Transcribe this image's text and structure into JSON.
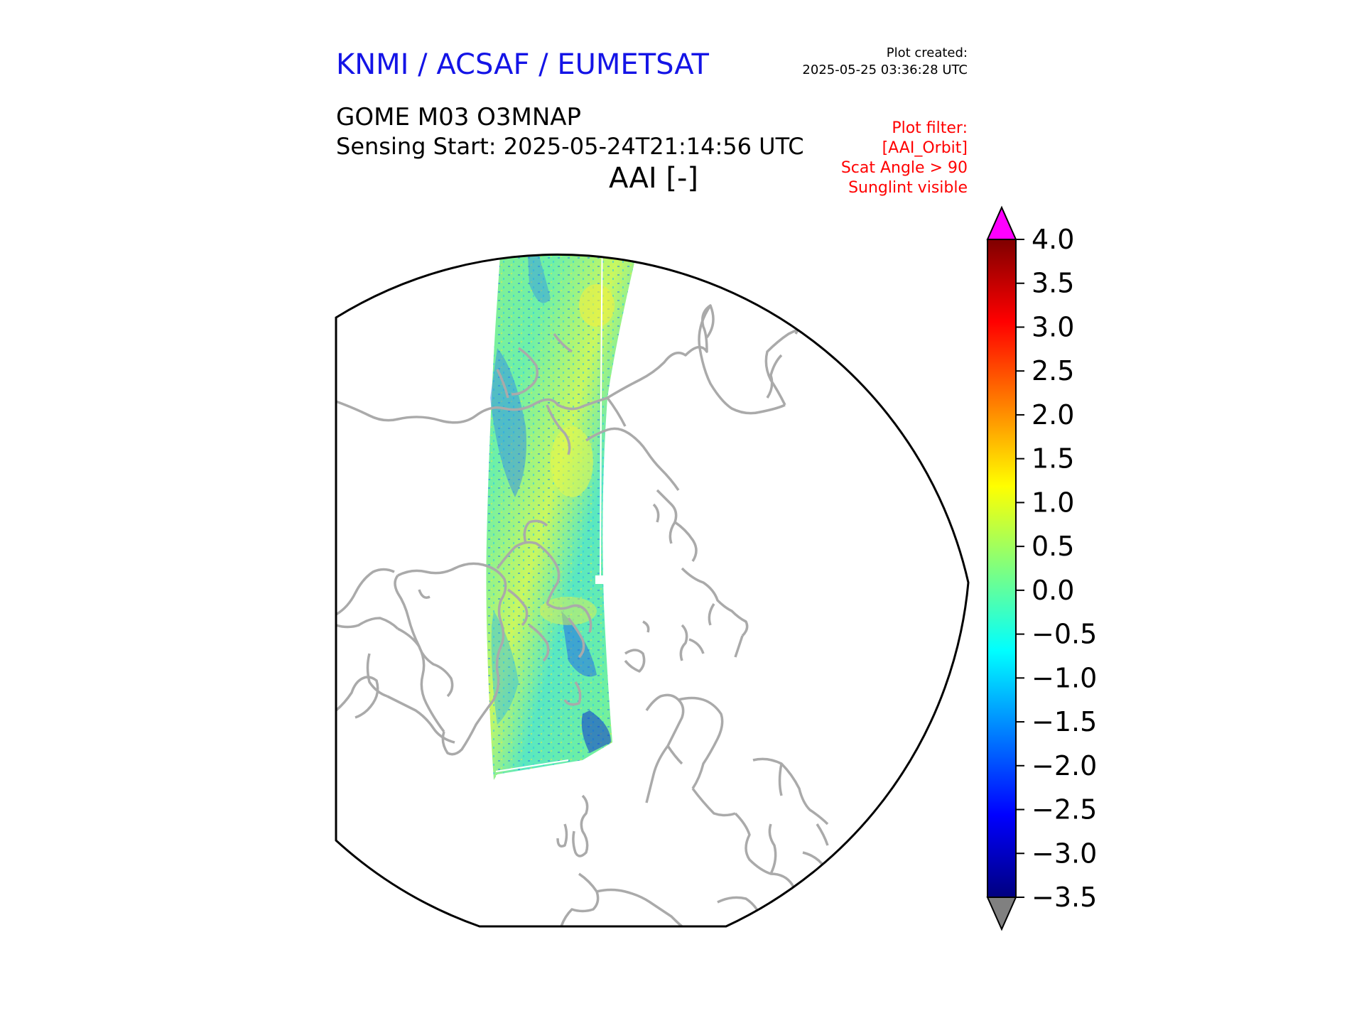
{
  "header": {
    "organization": "KNMI / ACSAF / EUMETSAT",
    "plot_created_label": "Plot created:",
    "plot_created_time": "2025-05-25 03:36:28 UTC",
    "product": "GOME M03 O3MNAP",
    "sensing_start": "Sensing Start: 2025-05-24T21:14:56 UTC",
    "variable_title": "AAI [-]",
    "filters": [
      "Plot filter:",
      "[AAI_Orbit]",
      "Scat Angle > 90",
      "Sunglint visible"
    ]
  },
  "colors": {
    "org_text": "#1414e6",
    "filter_text": "#ff0000",
    "coastline": "#aaaaaa",
    "over_range": "#ff00ff",
    "under_range": "#808080"
  },
  "colorbar": {
    "min": -3.5,
    "max": 4.0,
    "ticks": [
      {
        "value": 4.0,
        "label": "4.0"
      },
      {
        "value": 3.5,
        "label": "3.5"
      },
      {
        "value": 3.0,
        "label": "3.0"
      },
      {
        "value": 2.5,
        "label": "2.5"
      },
      {
        "value": 2.0,
        "label": "2.0"
      },
      {
        "value": 1.5,
        "label": "1.5"
      },
      {
        "value": 1.0,
        "label": "1.0"
      },
      {
        "value": 0.5,
        "label": "0.5"
      },
      {
        "value": 0.0,
        "label": "0.0"
      },
      {
        "value": -0.5,
        "label": "−0.5"
      },
      {
        "value": -1.0,
        "label": "−1.0"
      },
      {
        "value": -1.5,
        "label": "−1.5"
      },
      {
        "value": -2.0,
        "label": "−2.0"
      },
      {
        "value": -2.5,
        "label": "−2.5"
      },
      {
        "value": -3.0,
        "label": "−3.0"
      },
      {
        "value": -3.5,
        "label": "−3.5"
      }
    ],
    "stops": [
      "#00007f",
      "#0000ff",
      "#007fff",
      "#00ffff",
      "#7fff7f",
      "#ffff00",
      "#ff7f00",
      "#ff0000",
      "#7f0000"
    ]
  }
}
